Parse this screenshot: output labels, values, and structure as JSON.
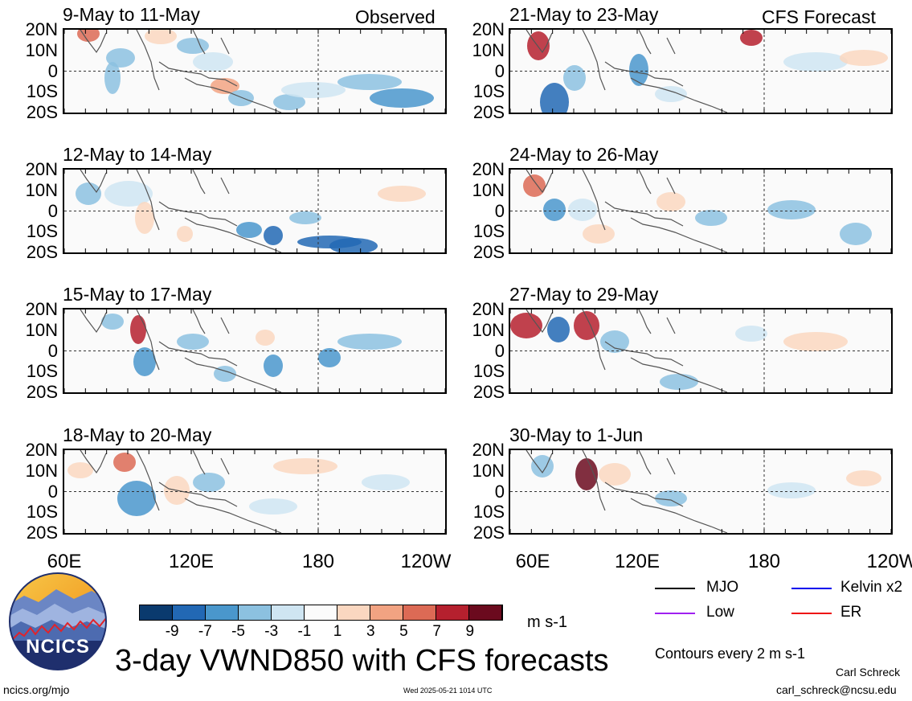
{
  "headers": {
    "observed": "Observed",
    "forecast": "CFS Forecast"
  },
  "y_ticks": [
    "20N",
    "10N",
    "0",
    "10S",
    "20S"
  ],
  "x_ticks": [
    "60E",
    "120E",
    "180",
    "120W"
  ],
  "panels": [
    {
      "title": "9-May to 11-May",
      "source": "observed"
    },
    {
      "title": "12-May to 14-May",
      "source": "observed"
    },
    {
      "title": "15-May to 17-May",
      "source": "observed"
    },
    {
      "title": "18-May to 20-May",
      "source": "observed"
    },
    {
      "title": "21-May to 23-May",
      "source": "forecast"
    },
    {
      "title": "24-May to 26-May",
      "source": "forecast"
    },
    {
      "title": "27-May to 29-May",
      "source": "forecast"
    },
    {
      "title": "30-May to 1-Jun",
      "source": "forecast"
    }
  ],
  "colorbar": {
    "labels": [
      "-9",
      "-7",
      "-5",
      "-3",
      "-1",
      "1",
      "3",
      "5",
      "7",
      "9"
    ],
    "colors": [
      "#0a3a6e",
      "#2268b4",
      "#4a97cc",
      "#8cc1e0",
      "#cfe5f2",
      "#fbfbfb",
      "#fad7c0",
      "#f2a382",
      "#dc6a55",
      "#b5202e",
      "#6b0a1e"
    ],
    "units": "m s-1"
  },
  "legend": [
    {
      "label": "MJO",
      "color": "#000000"
    },
    {
      "label": "Kelvin x2",
      "color": "#0000ee"
    },
    {
      "label": "Low",
      "color": "#a020f0"
    },
    {
      "label": "ER",
      "color": "#ee1111"
    }
  ],
  "contour_note": "Contours every 2 m s-1",
  "main_title": "3-day VWND850 with CFS forecasts",
  "logo_text": "NCICS",
  "footer": {
    "url": "ncics.org/mjo",
    "timestamp": "Wed 2025-05-21 1014 UTC",
    "author": "Carl Schreck",
    "email": "carl_schreck@ncsu.edu"
  }
}
